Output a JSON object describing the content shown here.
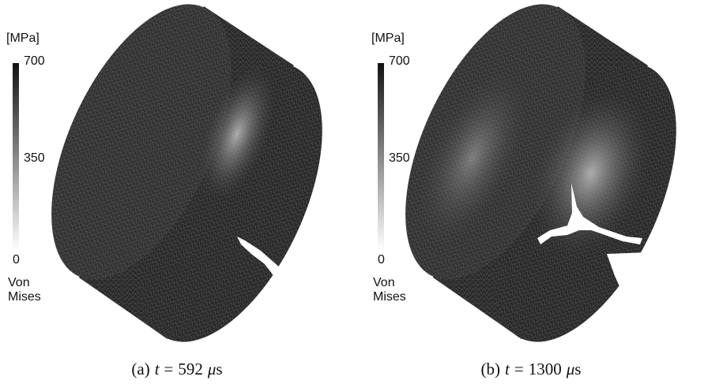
{
  "panels": [
    {
      "unit": "[MPa]",
      "colorbar": {
        "ticks": [
          700,
          350,
          0
        ],
        "label": [
          "Von",
          "Mises"
        ]
      },
      "caption": {
        "label": "(a)",
        "symbol": "t",
        "equals": "=",
        "value": 592,
        "unit_prefix": "μ",
        "unit": "s"
      }
    },
    {
      "unit": "[MPa]",
      "colorbar": {
        "ticks": [
          700,
          350,
          0
        ],
        "label": [
          "Von",
          "Mises"
        ]
      },
      "caption": {
        "label": "(b)",
        "symbol": "t",
        "equals": "=",
        "value": 1300,
        "unit_prefix": "μ",
        "unit": "s"
      }
    }
  ]
}
